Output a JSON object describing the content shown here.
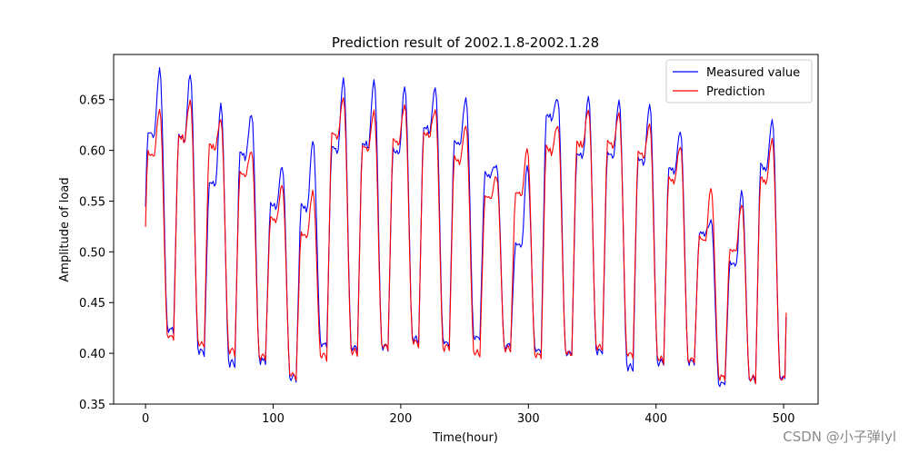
{
  "chart_data": {
    "type": "line",
    "title": "Prediction result of 2002.1.8-2002.1.28",
    "xlabel": "Time(hour)",
    "ylabel": "Amplitude of load",
    "xlim": [
      -25,
      527
    ],
    "ylim": [
      0.35,
      0.6945
    ],
    "xticks": [
      0,
      100,
      200,
      300,
      400,
      500
    ],
    "xtick_labels": [
      "0",
      "100",
      "200",
      "300",
      "400",
      "500"
    ],
    "yticks": [
      0.35,
      0.4,
      0.45,
      0.5,
      0.55,
      0.6,
      0.65
    ],
    "ytick_labels": [
      "0.35",
      "0.40",
      "0.45",
      "0.50",
      "0.55",
      "0.60",
      "0.65"
    ],
    "legend_position": "top-right",
    "n_points": 503,
    "series": [
      {
        "name": "Measured value",
        "color": "#0000ff",
        "daily_cycles": [
          {
            "trough": 0.443,
            "shoulder": 0.62,
            "peak": 0.68
          },
          {
            "trough": 0.42,
            "shoulder": 0.617,
            "peak": 0.675
          },
          {
            "trough": 0.398,
            "shoulder": 0.57,
            "peak": 0.645
          },
          {
            "trough": 0.386,
            "shoulder": 0.6,
            "peak": 0.636
          },
          {
            "trough": 0.389,
            "shoulder": 0.55,
            "peak": 0.585
          },
          {
            "trough": 0.372,
            "shoulder": 0.548,
            "peak": 0.61
          },
          {
            "trough": 0.405,
            "shoulder": 0.605,
            "peak": 0.67
          },
          {
            "trough": 0.401,
            "shoulder": 0.61,
            "peak": 0.67
          },
          {
            "trough": 0.403,
            "shoulder": 0.603,
            "peak": 0.664
          },
          {
            "trough": 0.41,
            "shoulder": 0.625,
            "peak": 0.662
          },
          {
            "trough": 0.407,
            "shoulder": 0.612,
            "peak": 0.652
          },
          {
            "trough": 0.412,
            "shoulder": 0.58,
            "peak": 0.584
          },
          {
            "trough": 0.404,
            "shoulder": 0.51,
            "peak": 0.585
          },
          {
            "trough": 0.4,
            "shoulder": 0.637,
            "peak": 0.65
          },
          {
            "trough": 0.396,
            "shoulder": 0.6,
            "peak": 0.655
          },
          {
            "trough": 0.398,
            "shoulder": 0.6,
            "peak": 0.65
          },
          {
            "trough": 0.383,
            "shoulder": 0.594,
            "peak": 0.645
          },
          {
            "trough": 0.387,
            "shoulder": 0.585,
            "peak": 0.62
          },
          {
            "trough": 0.388,
            "shoulder": 0.52,
            "peak": 0.53
          },
          {
            "trough": 0.367,
            "shoulder": 0.49,
            "peak": 0.56
          },
          {
            "trough": 0.371,
            "shoulder": 0.587,
            "peak": 0.63
          }
        ],
        "final_value": 0.436
      },
      {
        "name": "Prediction",
        "color": "#ff0000",
        "daily_cycles": [
          {
            "trough": 0.43,
            "shoulder": 0.6,
            "peak": 0.641
          },
          {
            "trough": 0.413,
            "shoulder": 0.616,
            "peak": 0.65
          },
          {
            "trough": 0.406,
            "shoulder": 0.608,
            "peak": 0.63
          },
          {
            "trough": 0.398,
            "shoulder": 0.58,
            "peak": 0.6
          },
          {
            "trough": 0.393,
            "shoulder": 0.535,
            "peak": 0.566
          },
          {
            "trough": 0.375,
            "shoulder": 0.52,
            "peak": 0.56
          },
          {
            "trough": 0.393,
            "shoulder": 0.62,
            "peak": 0.652
          },
          {
            "trough": 0.398,
            "shoulder": 0.606,
            "peak": 0.638
          },
          {
            "trough": 0.403,
            "shoulder": 0.612,
            "peak": 0.645
          },
          {
            "trough": 0.407,
            "shoulder": 0.62,
            "peak": 0.64
          },
          {
            "trough": 0.402,
            "shoulder": 0.595,
            "peak": 0.625
          },
          {
            "trough": 0.397,
            "shoulder": 0.557,
            "peak": 0.575
          },
          {
            "trough": 0.401,
            "shoulder": 0.56,
            "peak": 0.603
          },
          {
            "trough": 0.394,
            "shoulder": 0.605,
            "peak": 0.625
          },
          {
            "trough": 0.396,
            "shoulder": 0.61,
            "peak": 0.641
          },
          {
            "trough": 0.402,
            "shoulder": 0.61,
            "peak": 0.637
          },
          {
            "trough": 0.395,
            "shoulder": 0.6,
            "peak": 0.625
          },
          {
            "trough": 0.39,
            "shoulder": 0.575,
            "peak": 0.605
          },
          {
            "trough": 0.39,
            "shoulder": 0.515,
            "peak": 0.562
          },
          {
            "trough": 0.372,
            "shoulder": 0.505,
            "peak": 0.548
          },
          {
            "trough": 0.371,
            "shoulder": 0.575,
            "peak": 0.612
          }
        ],
        "final_value": 0.44
      }
    ]
  },
  "watermark": "CSDN @小子弹lyl"
}
